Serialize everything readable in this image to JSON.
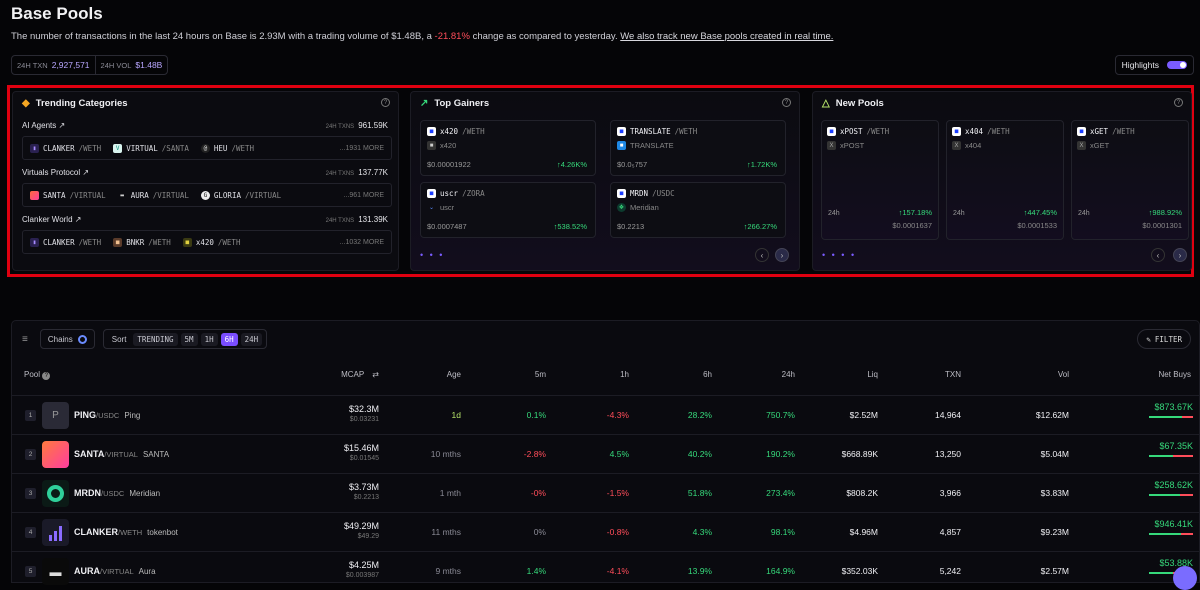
{
  "header": {
    "title": "Base Pools",
    "desc_pre": "The number of transactions in the last 24 hours on Base is 2.93M with a trading volume of $1.48B, a",
    "desc_change": "-21.81%",
    "desc_post": "change as compared to yesterday.",
    "desc_link": "We also track new Base pools created in real time.",
    "stats": [
      {
        "label": "24H TXN",
        "value": "2,927,571"
      },
      {
        "label": "24H VOL",
        "value": "$1.48B"
      }
    ],
    "highlights_label": "Highlights"
  },
  "trending": {
    "title": "Trending Categories",
    "help": "?",
    "more_label": "MORE",
    "categories": [
      {
        "name": "AI Agents ↗",
        "txns_label": "24H TXNS",
        "txns": "961.59K",
        "more": "...1931",
        "pairs": [
          {
            "base": "CLANKER",
            "quote": "/WETH"
          },
          {
            "base": "VIRTUAL",
            "quote": "/SANTA"
          },
          {
            "base": "HEU",
            "quote": "/WETH"
          }
        ]
      },
      {
        "name": "Virtuals Protocol ↗",
        "txns_label": "24H TXNS",
        "txns": "137.77K",
        "more": "...961",
        "pairs": [
          {
            "base": "SANTA",
            "quote": "/VIRTUAL"
          },
          {
            "base": "AURA",
            "quote": "/VIRTUAL"
          },
          {
            "base": "GLORIA",
            "quote": "/VIRTUAL"
          }
        ]
      },
      {
        "name": "Clanker World ↗",
        "txns_label": "24H TXNS",
        "txns": "131.39K",
        "more": "...1032",
        "pairs": [
          {
            "base": "CLANKER",
            "quote": "/WETH"
          },
          {
            "base": "BNKR",
            "quote": "/WETH"
          },
          {
            "base": "x420",
            "quote": "/WETH"
          }
        ]
      }
    ]
  },
  "gainers": {
    "title": "Top Gainers",
    "help": "?",
    "cards": [
      {
        "base": "x420",
        "quote": "/WETH",
        "name": "x420",
        "price": "$0.00001922",
        "change": "↑4.26K%"
      },
      {
        "base": "TRANSLATE",
        "quote": "/WETH",
        "name": "TRANSLATE",
        "price": "$0.0₅757",
        "change": "↑1.72K%"
      },
      {
        "base": "uscr",
        "quote": "/ZORA",
        "name": "uscr",
        "price": "$0.0007487",
        "change": "↑538.52%"
      },
      {
        "base": "MRDN",
        "quote": "/USDC",
        "name": "Meridian",
        "price": "$0.2213",
        "change": "↑266.27%"
      }
    ],
    "dots": "• • •",
    "nav_prev": "‹",
    "nav_next": "›"
  },
  "newpools": {
    "title": "New Pools",
    "help": "?",
    "cards": [
      {
        "base": "xPOST",
        "quote": "/WETH",
        "name": "xPOST",
        "age": "24h",
        "change": "↑157.18%",
        "price": "$0.0001637"
      },
      {
        "base": "x404",
        "quote": "/WETH",
        "name": "x404",
        "age": "24h",
        "change": "↑447.45%",
        "price": "$0.0001533"
      },
      {
        "base": "xGET",
        "quote": "/WETH",
        "name": "xGET",
        "age": "24h",
        "change": "↑988.92%",
        "price": "$0.0001301"
      }
    ],
    "dots": "• • • •",
    "nav_prev": "‹",
    "nav_next": "›"
  },
  "toolbar": {
    "chains_label": "Chains",
    "sort_label": "Sort",
    "sort_options": [
      "TRENDING",
      "5M",
      "1H",
      "6H",
      "24H"
    ],
    "active_sort": "6H",
    "filter_label": "FILTER"
  },
  "table": {
    "headers": {
      "pool": "Pool",
      "mcap": "MCAP",
      "age": "Age",
      "m5": "5m",
      "h1": "1h",
      "h6": "6h",
      "h24": "24h",
      "liq": "Liq",
      "txn": "TXN",
      "vol": "Vol",
      "netbuys": "Net Buys"
    },
    "rows": [
      {
        "rank": "1",
        "base": "PING",
        "quote": "/USDC",
        "name": "Ping",
        "mcap": "$32.3M",
        "price": "$0.03231",
        "age": "1d",
        "m5": "0.1%",
        "h1": "-4.3%",
        "h6": "28.2%",
        "h24": "750.7%",
        "liq": "$2.52M",
        "txn": "14,964",
        "vol": "$12.62M",
        "netbuys": "$873.67K",
        "buy_share": 0.75
      },
      {
        "rank": "2",
        "base": "SANTA",
        "quote": "/VIRTUAL",
        "name": "SANTA",
        "mcap": "$15.46M",
        "price": "$0.01545",
        "age": "10 mths",
        "m5": "-2.8%",
        "h1": "4.5%",
        "h6": "40.2%",
        "h24": "190.2%",
        "liq": "$668.89K",
        "txn": "13,250",
        "vol": "$5.04M",
        "netbuys": "$67.35K",
        "buy_share": 0.55
      },
      {
        "rank": "3",
        "base": "MRDN",
        "quote": "/USDC",
        "name": "Meridian",
        "mcap": "$3.73M",
        "price": "$0.2213",
        "age": "1 mth",
        "m5": "-0%",
        "h1": "-1.5%",
        "h6": "51.8%",
        "h24": "273.4%",
        "liq": "$808.2K",
        "txn": "3,966",
        "vol": "$3.83M",
        "netbuys": "$258.62K",
        "buy_share": 0.7
      },
      {
        "rank": "4",
        "base": "CLANKER",
        "quote": "/WETH",
        "name": "tokenbot",
        "mcap": "$49.29M",
        "price": "$49.29",
        "age": "11 mths",
        "m5": "0%",
        "h1": "-0.8%",
        "h6": "4.3%",
        "h24": "98.1%",
        "liq": "$4.96M",
        "txn": "4,857",
        "vol": "$9.23M",
        "netbuys": "$946.41K",
        "buy_share": 0.72
      },
      {
        "rank": "5",
        "base": "AURA",
        "quote": "/VIRTUAL",
        "name": "Aura",
        "mcap": "$4.25M",
        "price": "$0.003987",
        "age": "9 mths",
        "m5": "1.4%",
        "h1": "-4.1%",
        "h6": "13.9%",
        "h24": "164.9%",
        "liq": "$352.03K",
        "txn": "5,242",
        "vol": "$2.57M",
        "netbuys": "$53.88K",
        "buy_share": 0.55
      }
    ]
  },
  "colors": {
    "accent": "#7a4dff",
    "positive": "#36d97b",
    "negative": "#ff4d5a",
    "highlight_border": "#e00010"
  }
}
